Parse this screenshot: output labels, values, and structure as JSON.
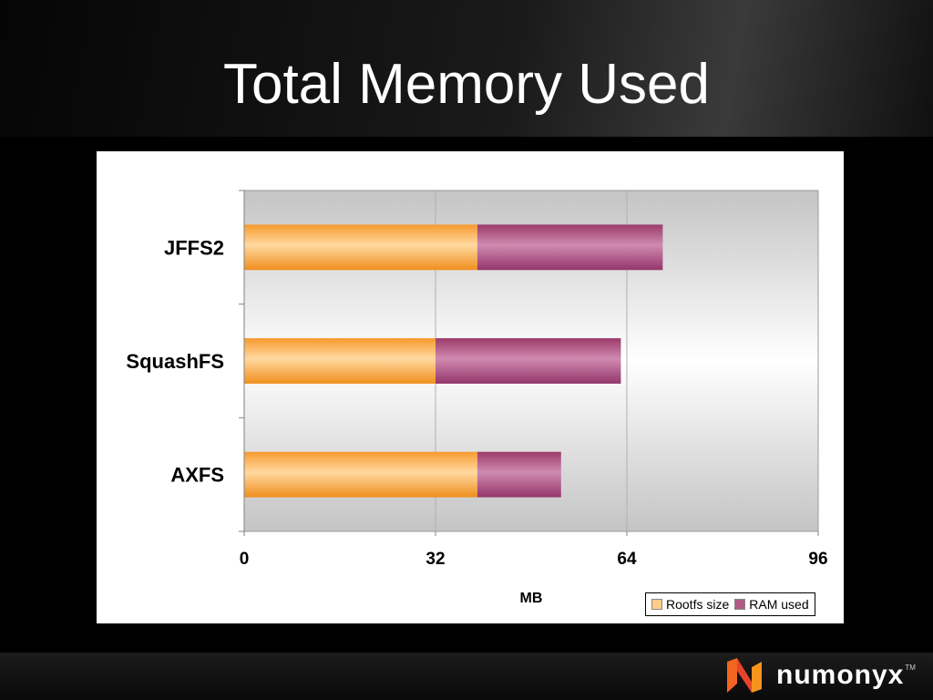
{
  "slide": {
    "title": "Total Memory Used",
    "brand": "numonyx",
    "trademark": "TM"
  },
  "chart_data": {
    "type": "bar",
    "orientation": "horizontal",
    "stacked": true,
    "categories": [
      "JFFS2",
      "SquashFS",
      "AXFS"
    ],
    "series": [
      {
        "name": "Rootfs size",
        "values": [
          39,
          32,
          39
        ],
        "color": "#F7A43A"
      },
      {
        "name": "RAM used",
        "values": [
          31,
          31,
          14
        ],
        "color": "#B05A85"
      }
    ],
    "xlabel": "MB",
    "xlim": [
      0,
      96
    ],
    "xticks": [
      0,
      32,
      64,
      96
    ],
    "grid": true,
    "legend": "bottom-right"
  }
}
